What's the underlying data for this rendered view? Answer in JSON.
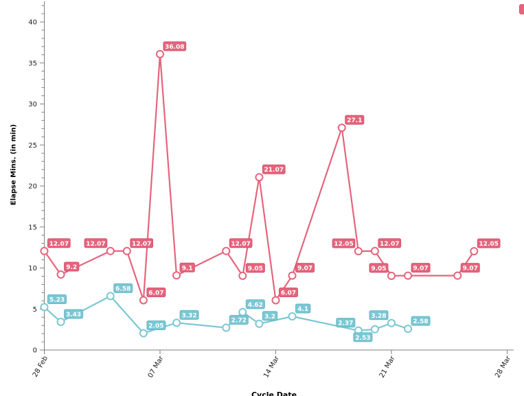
{
  "chart_data": {
    "type": "line",
    "title": "",
    "xlabel": "Cycle Date",
    "ylabel": "Elapse Mins. (in min)",
    "legend": "none",
    "grid": "off",
    "x_ticks": [
      {
        "day": 0,
        "label": "28 Feb"
      },
      {
        "day": 7,
        "label": "07 Mar"
      },
      {
        "day": 14,
        "label": "14 Mar"
      },
      {
        "day": 21,
        "label": "21 Mar"
      },
      {
        "day": 28,
        "label": "28 Mar"
      }
    ],
    "y_axis": {
      "min": 0,
      "max": 42,
      "minor_step": 1,
      "major_step": 5,
      "major_labels": [
        0,
        5,
        10,
        15,
        20,
        25,
        30,
        35,
        40
      ]
    },
    "series": [
      {
        "name": "elapse-mins-series-pink",
        "color": "#e5647c",
        "border_color": "#d4556e",
        "label_text_color": "#ffffff",
        "points": [
          {
            "day": 0,
            "value": 12.07,
            "label": "12.07",
            "label_pos": "tr"
          },
          {
            "day": 1,
            "value": 9.2,
            "label": "9.2",
            "label_pos": "tr"
          },
          {
            "day": 4,
            "value": 12.07,
            "label": "12.07",
            "label_pos": "tl"
          },
          {
            "day": 5,
            "value": 12.07,
            "label": "12.07",
            "label_pos": "tr"
          },
          {
            "day": 6,
            "value": 6.07,
            "label": "6.07",
            "label_pos": "tr"
          },
          {
            "day": 7,
            "value": 36.08,
            "label": "36.08",
            "label_pos": "tr"
          },
          {
            "day": 8,
            "value": 9.1,
            "label": "9.1",
            "label_pos": "tr"
          },
          {
            "day": 11,
            "value": 12.07,
            "label": "12.07",
            "label_pos": "tr"
          },
          {
            "day": 12,
            "value": 9.05,
            "label": "9.05",
            "label_pos": "tr"
          },
          {
            "day": 13,
            "value": 21.07,
            "label": "21.07",
            "label_pos": "tr"
          },
          {
            "day": 14,
            "value": 6.07,
            "label": "6.07",
            "label_pos": "tr"
          },
          {
            "day": 15,
            "value": 9.07,
            "label": "9.07",
            "label_pos": "tr"
          },
          {
            "day": 18,
            "value": 27.1,
            "label": "27.1",
            "label_pos": "tr"
          },
          {
            "day": 19,
            "value": 12.05,
            "label": "12.05",
            "label_pos": "tl"
          },
          {
            "day": 20,
            "value": 12.07,
            "label": "12.07",
            "label_pos": "tr"
          },
          {
            "day": 21,
            "value": 9.05,
            "label": "9.05",
            "label_pos": "tl"
          },
          {
            "day": 22,
            "value": 9.07,
            "label": "9.07",
            "label_pos": "tr"
          },
          {
            "day": 25,
            "value": 9.07,
            "label": "9.07",
            "label_pos": "tr"
          },
          {
            "day": 26,
            "value": 12.05,
            "label": "12.05",
            "label_pos": "tr"
          }
        ]
      },
      {
        "name": "elapse-mins-series-blue",
        "color": "#7bc7d4",
        "border_color": "#67b7c6",
        "label_text_color": "#ffffff",
        "points": [
          {
            "day": 0,
            "value": 5.23,
            "label": "5.23",
            "label_pos": "tr"
          },
          {
            "day": 1,
            "value": 3.43,
            "label": "3.43",
            "label_pos": "tr"
          },
          {
            "day": 4,
            "value": 6.58,
            "label": "6.58",
            "label_pos": "tr"
          },
          {
            "day": 6,
            "value": 2.05,
            "label": "2.05",
            "label_pos": "tr"
          },
          {
            "day": 8,
            "value": 3.32,
            "label": "3.32",
            "label_pos": "tr"
          },
          {
            "day": 11,
            "value": 2.72,
            "label": "2.72",
            "label_pos": "tr"
          },
          {
            "day": 12,
            "value": 4.62,
            "label": "4.62",
            "label_pos": "tr"
          },
          {
            "day": 13,
            "value": 3.2,
            "label": "3.2",
            "label_pos": "tr"
          },
          {
            "day": 15,
            "value": 4.1,
            "label": "4.1",
            "label_pos": "tr"
          },
          {
            "day": 19,
            "value": 2.37,
            "label": "2.37",
            "label_pos": "tl"
          },
          {
            "day": 20,
            "value": 2.53,
            "label": "2.53",
            "label_pos": "bl"
          },
          {
            "day": 21,
            "value": 3.28,
            "label": "3.28",
            "label_pos": "tl"
          },
          {
            "day": 22,
            "value": 2.58,
            "label": "2.58",
            "label_pos": "tr"
          }
        ]
      }
    ]
  },
  "overlay": {
    "clipped_red_badge_color": "#e5647c",
    "clipped_red_badge_border": "#c9516b"
  }
}
